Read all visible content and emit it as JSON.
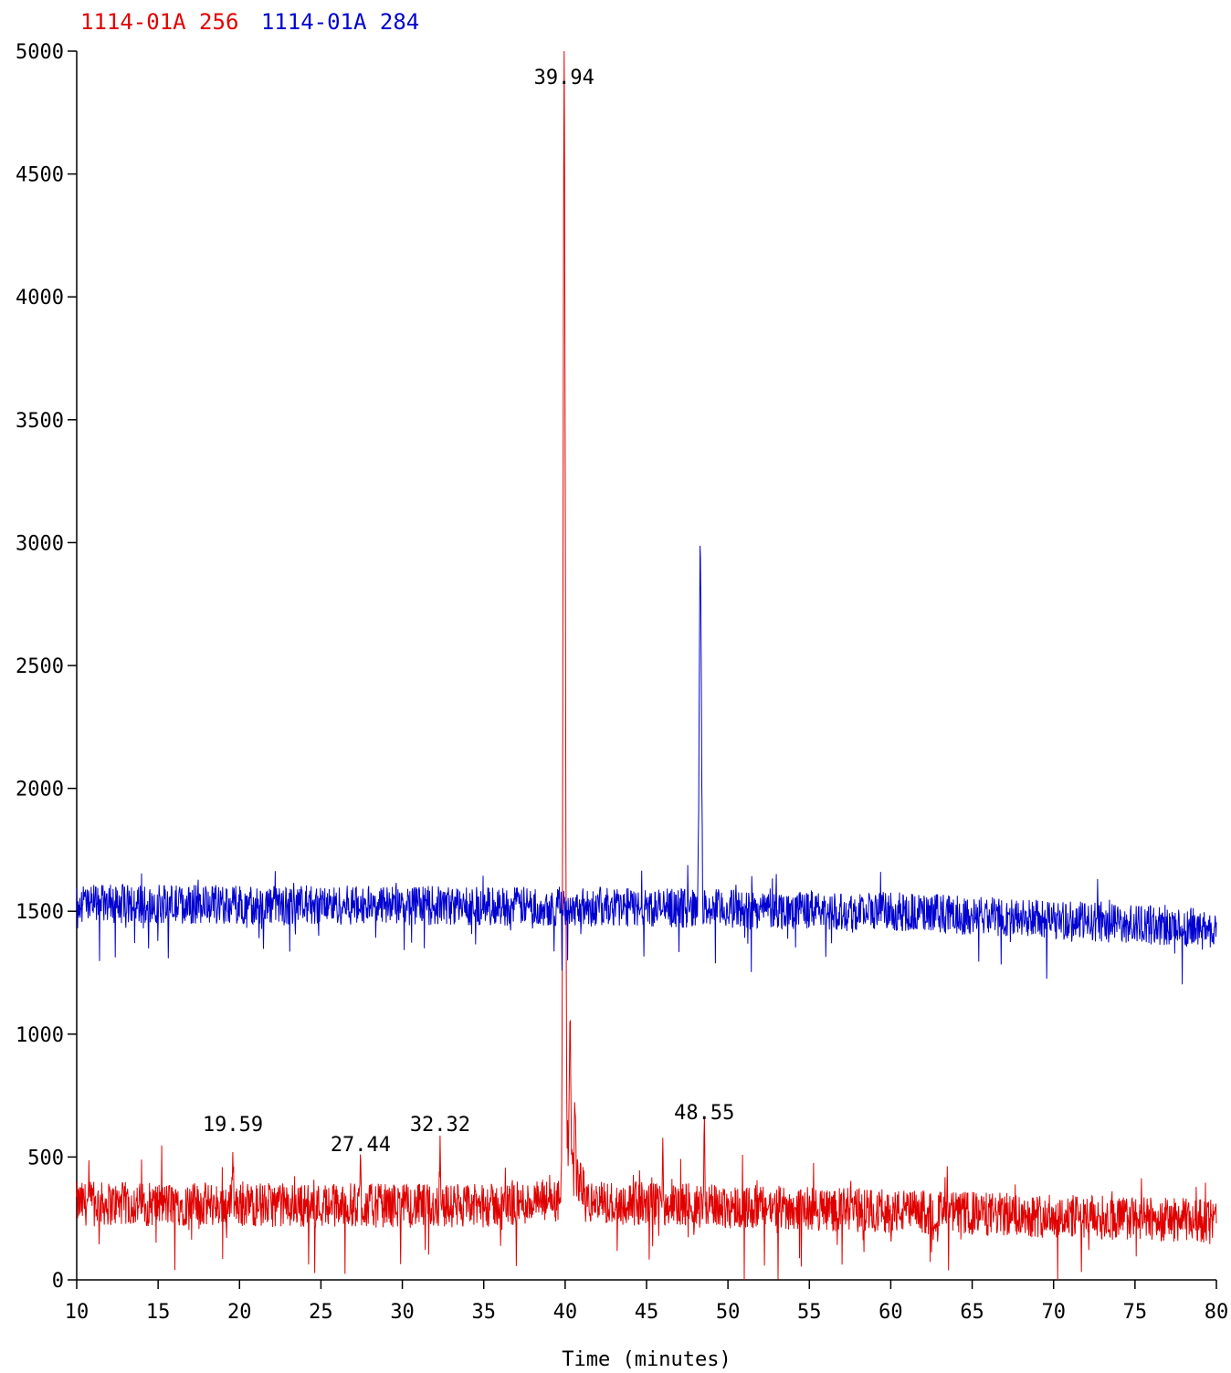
{
  "legend": [
    {
      "name": "1114-01A 256",
      "color": "#e00000"
    },
    {
      "name": "1114-01A 284",
      "color": "#0000d0"
    }
  ],
  "chart_data": {
    "type": "line",
    "xlabel": "Time (minutes)",
    "ylabel": "",
    "xlim": [
      10,
      80
    ],
    "ylim": [
      0,
      5000
    ],
    "xticks": [
      10,
      15,
      20,
      25,
      30,
      35,
      40,
      45,
      50,
      55,
      60,
      65,
      70,
      75,
      80
    ],
    "yticks": [
      0,
      500,
      1000,
      1500,
      2000,
      2500,
      3000,
      3500,
      4000,
      4500,
      5000
    ],
    "grid": false,
    "legend_position": "top-left",
    "series": [
      {
        "name": "1114-01A 256",
        "color": "#e00000",
        "baseline": [
          [
            10,
            310
          ],
          [
            35,
            300
          ],
          [
            39,
            320
          ],
          [
            60,
            280
          ],
          [
            80,
            240
          ]
        ],
        "noise_amplitude": 90,
        "peaks": [
          {
            "x": 39.94,
            "y": 5000,
            "label": "39.94"
          },
          {
            "x": 40.3,
            "y": 960
          },
          {
            "x": 40.6,
            "y": 650
          },
          {
            "x": 19.59,
            "y": 560,
            "label": "19.59"
          },
          {
            "x": 27.44,
            "y": 480,
            "label": "27.44"
          },
          {
            "x": 32.32,
            "y": 560,
            "label": "32.32"
          },
          {
            "x": 48.55,
            "y": 610,
            "label": "48.55"
          },
          {
            "x": 46.0,
            "y": 580
          }
        ]
      },
      {
        "name": "1114-01A 284",
        "color": "#0000d0",
        "baseline": [
          [
            10,
            1530
          ],
          [
            40,
            1520
          ],
          [
            60,
            1500
          ],
          [
            80,
            1430
          ]
        ],
        "noise_amplitude": 80,
        "peaks": [
          {
            "x": 48.3,
            "y": 3010
          }
        ]
      }
    ],
    "peak_labels": [
      "39.94",
      "19.59",
      "27.44",
      "32.32",
      "48.55"
    ]
  }
}
